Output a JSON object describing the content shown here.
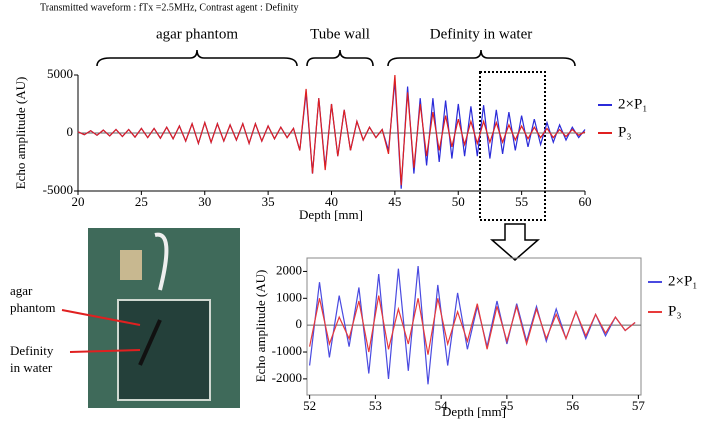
{
  "header": "Transmitted waveform : fTx =2.5MHz,    Contrast agent : Definity",
  "photo_labels": [
    "agar",
    "phantom",
    "Definity",
    "in water"
  ],
  "chart_data": [
    {
      "type": "line",
      "x_label": "Depth [mm]",
      "y_label": "Echo amplitude (AU)",
      "annotations": [
        "agar phantom",
        "Tube wall",
        "Definity in water"
      ],
      "x": [
        20,
        20.5,
        21,
        21.5,
        22,
        22.5,
        23,
        23.5,
        24,
        24.5,
        25,
        25.5,
        26,
        26.5,
        27,
        27.5,
        28,
        28.5,
        29,
        29.5,
        30,
        30.5,
        31,
        31.5,
        32,
        32.5,
        33,
        33.5,
        34,
        34.5,
        35,
        35.5,
        36,
        36.5,
        37,
        37.5,
        38,
        38.5,
        39,
        39.5,
        40,
        40.5,
        41,
        41.5,
        42,
        42.5,
        43,
        43.5,
        44,
        44.5,
        45,
        45.5,
        46,
        46.5,
        47,
        47.5,
        48,
        48.5,
        49,
        49.5,
        50,
        50.5,
        51,
        51.5,
        52,
        52.5,
        53,
        53.5,
        54,
        54.5,
        55,
        55.5,
        56,
        56.5,
        57,
        57.5,
        58,
        58.5,
        59,
        59.5,
        60
      ],
      "series": [
        {
          "name": "2×P₁",
          "color": "#2b2bd9",
          "values": [
            100,
            -150,
            200,
            -200,
            250,
            -250,
            300,
            -300,
            300,
            -350,
            400,
            -400,
            400,
            -450,
            500,
            -500,
            600,
            -700,
            800,
            -900,
            900,
            -800,
            800,
            -700,
            700,
            -600,
            800,
            -900,
            800,
            -700,
            600,
            -500,
            500,
            -400,
            400,
            -1500,
            3500,
            -3500,
            3000,
            -3000,
            2500,
            -2000,
            2000,
            -1500,
            1000,
            -600,
            500,
            -400,
            300,
            -1500,
            4500,
            -4800,
            4000,
            -3500,
            3000,
            -2800,
            3000,
            -2500,
            2800,
            -2200,
            2500,
            -2000,
            2300,
            -2000,
            2400,
            -2200,
            2000,
            -1800,
            1800,
            -1500,
            1500,
            -1200,
            1200,
            -1000,
            900,
            -800,
            700,
            -600,
            500,
            -400,
            300
          ]
        },
        {
          "name": "P₃",
          "color": "#e02020",
          "values": [
            100,
            -150,
            200,
            -200,
            250,
            -250,
            300,
            -300,
            300,
            -350,
            400,
            -400,
            400,
            -450,
            500,
            -500,
            600,
            -700,
            800,
            -900,
            900,
            -800,
            800,
            -700,
            700,
            -600,
            800,
            -900,
            800,
            -700,
            600,
            -500,
            500,
            -400,
            400,
            -1500,
            3800,
            -3500,
            3000,
            -3200,
            2500,
            -2000,
            2000,
            -1500,
            1000,
            -600,
            500,
            -400,
            300,
            -1800,
            5000,
            -4500,
            3500,
            -3000,
            2500,
            -2000,
            1800,
            -1500,
            1500,
            -1200,
            1200,
            -1000,
            1000,
            -900,
            1000,
            -800,
            900,
            -800,
            700,
            -600,
            600,
            -500,
            500,
            -400,
            400,
            -400,
            300,
            -300,
            300,
            -200,
            100
          ]
        }
      ],
      "xlim": [
        20,
        60
      ],
      "xticks": [
        20,
        25,
        30,
        35,
        40,
        45,
        50,
        55,
        60
      ],
      "ylim": [
        -5000,
        5000
      ],
      "yticks": [
        -5000,
        0,
        5000
      ]
    },
    {
      "type": "line",
      "x_label": "Depth [mm]",
      "y_label": "Echo amplitude (AU)",
      "x": [
        52,
        52.15,
        52.3,
        52.45,
        52.6,
        52.75,
        52.9,
        53.05,
        53.2,
        53.35,
        53.5,
        53.65,
        53.8,
        53.95,
        54.1,
        54.25,
        54.4,
        54.55,
        54.7,
        54.85,
        55,
        55.15,
        55.3,
        55.45,
        55.6,
        55.75,
        55.9,
        56.05,
        56.2,
        56.35,
        56.5,
        56.65,
        56.8,
        56.95
      ],
      "series": [
        {
          "name": "2×P₁",
          "color": "#4a4ae0",
          "values": [
            -1500,
            1600,
            -1200,
            1100,
            -800,
            1400,
            -1800,
            1900,
            -2000,
            2100,
            -1700,
            2200,
            -2200,
            1500,
            -1500,
            1200,
            -900,
            700,
            -800,
            900,
            -700,
            800,
            -600,
            700,
            -600,
            600,
            -500,
            500,
            -500,
            400,
            -400,
            300,
            -200,
            100
          ]
        },
        {
          "name": "P₃",
          "color": "#e83a3a",
          "values": [
            -800,
            1000,
            -700,
            300,
            -500,
            900,
            -1000,
            1100,
            -900,
            600,
            -700,
            1000,
            -1100,
            1000,
            -700,
            500,
            -600,
            800,
            -900,
            700,
            -600,
            700,
            -700,
            600,
            -500,
            400,
            -500,
            500,
            -400,
            400,
            -300,
            300,
            -200,
            100
          ]
        }
      ],
      "xlim": [
        51.96,
        57.04
      ],
      "xticks": [
        52,
        53,
        54,
        55,
        56,
        57
      ],
      "ylim": [
        -2600,
        2500
      ],
      "yticks": [
        -2000,
        -1000,
        0,
        1000,
        2000
      ]
    }
  ]
}
